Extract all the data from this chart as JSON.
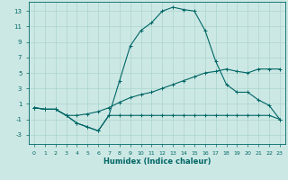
{
  "xlabel": "Humidex (Indice chaleur)",
  "background_color": "#cce8e4",
  "grid_color": "#aad4cc",
  "line_color": "#006666",
  "x_ticks": [
    0,
    1,
    2,
    3,
    4,
    5,
    6,
    7,
    8,
    9,
    10,
    11,
    12,
    13,
    14,
    15,
    16,
    17,
    18,
    19,
    20,
    21,
    22,
    23
  ],
  "y_ticks": [
    -3,
    -1,
    1,
    3,
    5,
    7,
    9,
    11,
    13
  ],
  "xlim": [
    -0.5,
    23.5
  ],
  "ylim": [
    -4.2,
    14.2
  ],
  "series": [
    {
      "x": [
        0,
        1,
        2,
        3,
        4,
        5,
        6,
        7,
        8,
        9,
        10,
        11,
        12,
        13,
        14,
        15,
        16,
        17,
        18,
        19,
        20,
        21,
        22,
        23
      ],
      "y": [
        0.5,
        0.3,
        0.3,
        -0.5,
        -0.5,
        -0.3,
        0.0,
        0.5,
        1.2,
        1.8,
        2.2,
        2.5,
        3.0,
        3.5,
        4.0,
        4.5,
        5.0,
        5.2,
        5.5,
        5.2,
        5.0,
        5.5,
        5.5,
        5.5
      ]
    },
    {
      "x": [
        0,
        1,
        2,
        3,
        4,
        5,
        6,
        7,
        8,
        9,
        10,
        11,
        12,
        13,
        14,
        15,
        16,
        17,
        18,
        19,
        20,
        21,
        22,
        23
      ],
      "y": [
        0.5,
        0.3,
        0.3,
        -0.5,
        -1.5,
        -2.0,
        -2.5,
        -0.5,
        -0.5,
        -0.5,
        -0.5,
        -0.5,
        -0.5,
        -0.5,
        -0.5,
        -0.5,
        -0.5,
        -0.5,
        -0.5,
        -0.5,
        -0.5,
        -0.5,
        -0.5,
        -1.0
      ]
    },
    {
      "x": [
        0,
        1,
        2,
        3,
        4,
        5,
        6,
        7,
        8,
        9,
        10,
        11,
        12,
        13,
        14,
        15,
        16,
        17,
        18,
        19,
        20,
        21,
        22,
        23
      ],
      "y": [
        0.5,
        0.3,
        0.3,
        -0.5,
        -1.5,
        -2.0,
        -2.5,
        -0.5,
        4.0,
        8.5,
        10.5,
        11.5,
        13.0,
        13.5,
        13.2,
        13.0,
        10.5,
        6.5,
        3.5,
        2.5,
        2.5,
        1.5,
        0.8,
        -1.0
      ]
    }
  ]
}
